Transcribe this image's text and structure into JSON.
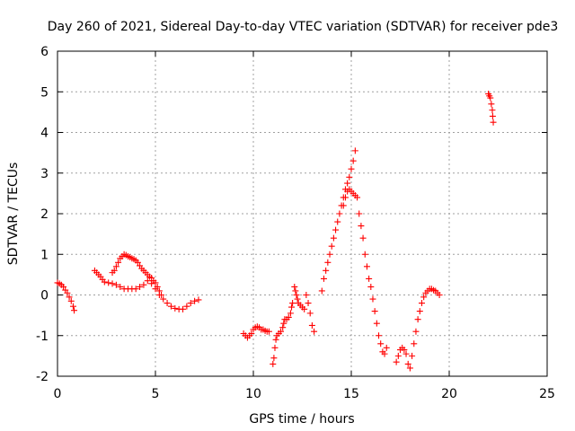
{
  "chart_data": {
    "type": "scatter",
    "title": "Day 260 of 2021, Sidereal Day-to-day VTEC variation (SDTVAR) for receiver pde3",
    "xlabel": "GPS time / hours",
    "ylabel": "SDTVAR / TECUs",
    "xlim": [
      0,
      25
    ],
    "ylim": [
      -2,
      6
    ],
    "xticks": [
      "0",
      "5",
      "10",
      "15",
      "20",
      "25"
    ],
    "yticks": [
      "-2",
      "-1",
      "0",
      "1",
      "2",
      "3",
      "4",
      "5",
      "6"
    ],
    "grid": true,
    "marker": "+",
    "color": "#ff0000",
    "series": [
      {
        "name": "SDTVAR",
        "points": [
          [
            0.0,
            0.3
          ],
          [
            0.1,
            0.28
          ],
          [
            0.2,
            0.25
          ],
          [
            0.3,
            0.2
          ],
          [
            0.4,
            0.12
          ],
          [
            0.5,
            0.05
          ],
          [
            0.6,
            -0.05
          ],
          [
            0.7,
            -0.15
          ],
          [
            0.8,
            -0.28
          ],
          [
            0.85,
            -0.38
          ],
          [
            1.9,
            0.6
          ],
          [
            2.0,
            0.55
          ],
          [
            2.1,
            0.5
          ],
          [
            2.2,
            0.45
          ],
          [
            2.3,
            0.38
          ],
          [
            2.4,
            0.32
          ],
          [
            2.6,
            0.3
          ],
          [
            2.8,
            0.28
          ],
          [
            3.0,
            0.25
          ],
          [
            3.2,
            0.2
          ],
          [
            3.4,
            0.15
          ],
          [
            3.6,
            0.15
          ],
          [
            3.8,
            0.15
          ],
          [
            4.0,
            0.15
          ],
          [
            4.2,
            0.2
          ],
          [
            4.4,
            0.25
          ],
          [
            4.6,
            0.35
          ],
          [
            4.8,
            0.28
          ],
          [
            5.0,
            0.15
          ],
          [
            5.2,
            0.0
          ],
          [
            5.4,
            -0.1
          ],
          [
            5.6,
            -0.2
          ],
          [
            5.8,
            -0.28
          ],
          [
            6.0,
            -0.33
          ],
          [
            6.2,
            -0.35
          ],
          [
            6.4,
            -0.35
          ],
          [
            6.6,
            -0.28
          ],
          [
            6.8,
            -0.2
          ],
          [
            7.0,
            -0.15
          ],
          [
            7.2,
            -0.12
          ],
          [
            2.8,
            0.55
          ],
          [
            2.9,
            0.6
          ],
          [
            3.0,
            0.7
          ],
          [
            3.1,
            0.8
          ],
          [
            3.2,
            0.9
          ],
          [
            3.3,
            0.95
          ],
          [
            3.4,
            1.0
          ],
          [
            3.5,
            0.98
          ],
          [
            3.6,
            0.95
          ],
          [
            3.7,
            0.93
          ],
          [
            3.8,
            0.9
          ],
          [
            3.9,
            0.88
          ],
          [
            4.0,
            0.85
          ],
          [
            4.1,
            0.8
          ],
          [
            4.2,
            0.72
          ],
          [
            4.3,
            0.65
          ],
          [
            4.4,
            0.6
          ],
          [
            4.5,
            0.55
          ],
          [
            4.6,
            0.5
          ],
          [
            4.7,
            0.45
          ],
          [
            4.8,
            0.42
          ],
          [
            4.9,
            0.35
          ],
          [
            5.0,
            0.3
          ],
          [
            5.1,
            0.2
          ],
          [
            5.2,
            0.1
          ],
          [
            5.3,
            0.0
          ],
          [
            9.5,
            -0.95
          ],
          [
            9.6,
            -1.0
          ],
          [
            9.7,
            -1.05
          ],
          [
            9.8,
            -1.0
          ],
          [
            9.9,
            -0.95
          ],
          [
            10.0,
            -0.85
          ],
          [
            10.1,
            -0.8
          ],
          [
            10.2,
            -0.78
          ],
          [
            10.3,
            -0.8
          ],
          [
            10.4,
            -0.85
          ],
          [
            10.5,
            -0.85
          ],
          [
            10.6,
            -0.88
          ],
          [
            10.7,
            -0.9
          ],
          [
            10.8,
            -0.9
          ],
          [
            11.0,
            -1.7
          ],
          [
            11.05,
            -1.55
          ],
          [
            11.1,
            -1.3
          ],
          [
            11.15,
            -1.1
          ],
          [
            11.2,
            -1.0
          ],
          [
            11.3,
            -0.95
          ],
          [
            11.4,
            -0.9
          ],
          [
            11.5,
            -0.8
          ],
          [
            11.55,
            -0.7
          ],
          [
            11.6,
            -0.6
          ],
          [
            11.7,
            -0.6
          ],
          [
            11.8,
            -0.55
          ],
          [
            11.9,
            -0.45
          ],
          [
            11.95,
            -0.3
          ],
          [
            12.0,
            -0.2
          ],
          [
            12.1,
            0.2
          ],
          [
            12.15,
            0.1
          ],
          [
            12.2,
            0.0
          ],
          [
            12.25,
            -0.1
          ],
          [
            12.3,
            -0.2
          ],
          [
            12.4,
            -0.25
          ],
          [
            12.5,
            -0.3
          ],
          [
            12.6,
            -0.35
          ],
          [
            12.7,
            0.0
          ],
          [
            12.8,
            -0.2
          ],
          [
            12.9,
            -0.45
          ],
          [
            13.0,
            -0.75
          ],
          [
            13.1,
            -0.9
          ],
          [
            13.5,
            0.1
          ],
          [
            13.6,
            0.4
          ],
          [
            13.7,
            0.6
          ],
          [
            13.8,
            0.8
          ],
          [
            13.9,
            1.0
          ],
          [
            14.0,
            1.2
          ],
          [
            14.1,
            1.4
          ],
          [
            14.2,
            1.6
          ],
          [
            14.3,
            1.8
          ],
          [
            14.4,
            2.0
          ],
          [
            14.5,
            2.2
          ],
          [
            14.6,
            2.4
          ],
          [
            14.7,
            2.6
          ],
          [
            14.8,
            2.75
          ],
          [
            14.9,
            2.9
          ],
          [
            15.0,
            3.1
          ],
          [
            15.1,
            3.3
          ],
          [
            15.2,
            3.55
          ],
          [
            14.6,
            2.2
          ],
          [
            14.7,
            2.4
          ],
          [
            14.8,
            2.55
          ],
          [
            14.9,
            2.6
          ],
          [
            15.0,
            2.55
          ],
          [
            15.1,
            2.5
          ],
          [
            15.2,
            2.45
          ],
          [
            15.3,
            2.4
          ],
          [
            15.4,
            2.0
          ],
          [
            15.5,
            1.7
          ],
          [
            15.6,
            1.4
          ],
          [
            15.7,
            1.0
          ],
          [
            15.8,
            0.7
          ],
          [
            15.9,
            0.4
          ],
          [
            16.0,
            0.2
          ],
          [
            16.1,
            -0.1
          ],
          [
            16.2,
            -0.4
          ],
          [
            16.3,
            -0.7
          ],
          [
            16.4,
            -1.0
          ],
          [
            16.5,
            -1.2
          ],
          [
            16.6,
            -1.4
          ],
          [
            16.7,
            -1.45
          ],
          [
            16.8,
            -1.3
          ],
          [
            17.3,
            -1.65
          ],
          [
            17.4,
            -1.5
          ],
          [
            17.5,
            -1.35
          ],
          [
            17.6,
            -1.3
          ],
          [
            17.7,
            -1.35
          ],
          [
            17.8,
            -1.45
          ],
          [
            17.9,
            -1.7
          ],
          [
            18.0,
            -1.8
          ],
          [
            18.1,
            -1.5
          ],
          [
            18.2,
            -1.2
          ],
          [
            18.3,
            -0.9
          ],
          [
            18.4,
            -0.6
          ],
          [
            18.5,
            -0.4
          ],
          [
            18.6,
            -0.2
          ],
          [
            18.7,
            -0.05
          ],
          [
            18.8,
            0.05
          ],
          [
            18.9,
            0.1
          ],
          [
            19.0,
            0.15
          ],
          [
            19.1,
            0.15
          ],
          [
            19.2,
            0.12
          ],
          [
            19.3,
            0.1
          ],
          [
            19.4,
            0.05
          ],
          [
            19.5,
            0.0
          ],
          [
            22.0,
            4.95
          ],
          [
            22.05,
            4.9
          ],
          [
            22.1,
            4.85
          ],
          [
            22.15,
            4.7
          ],
          [
            22.2,
            4.55
          ],
          [
            22.22,
            4.4
          ],
          [
            22.25,
            4.25
          ]
        ]
      }
    ]
  }
}
